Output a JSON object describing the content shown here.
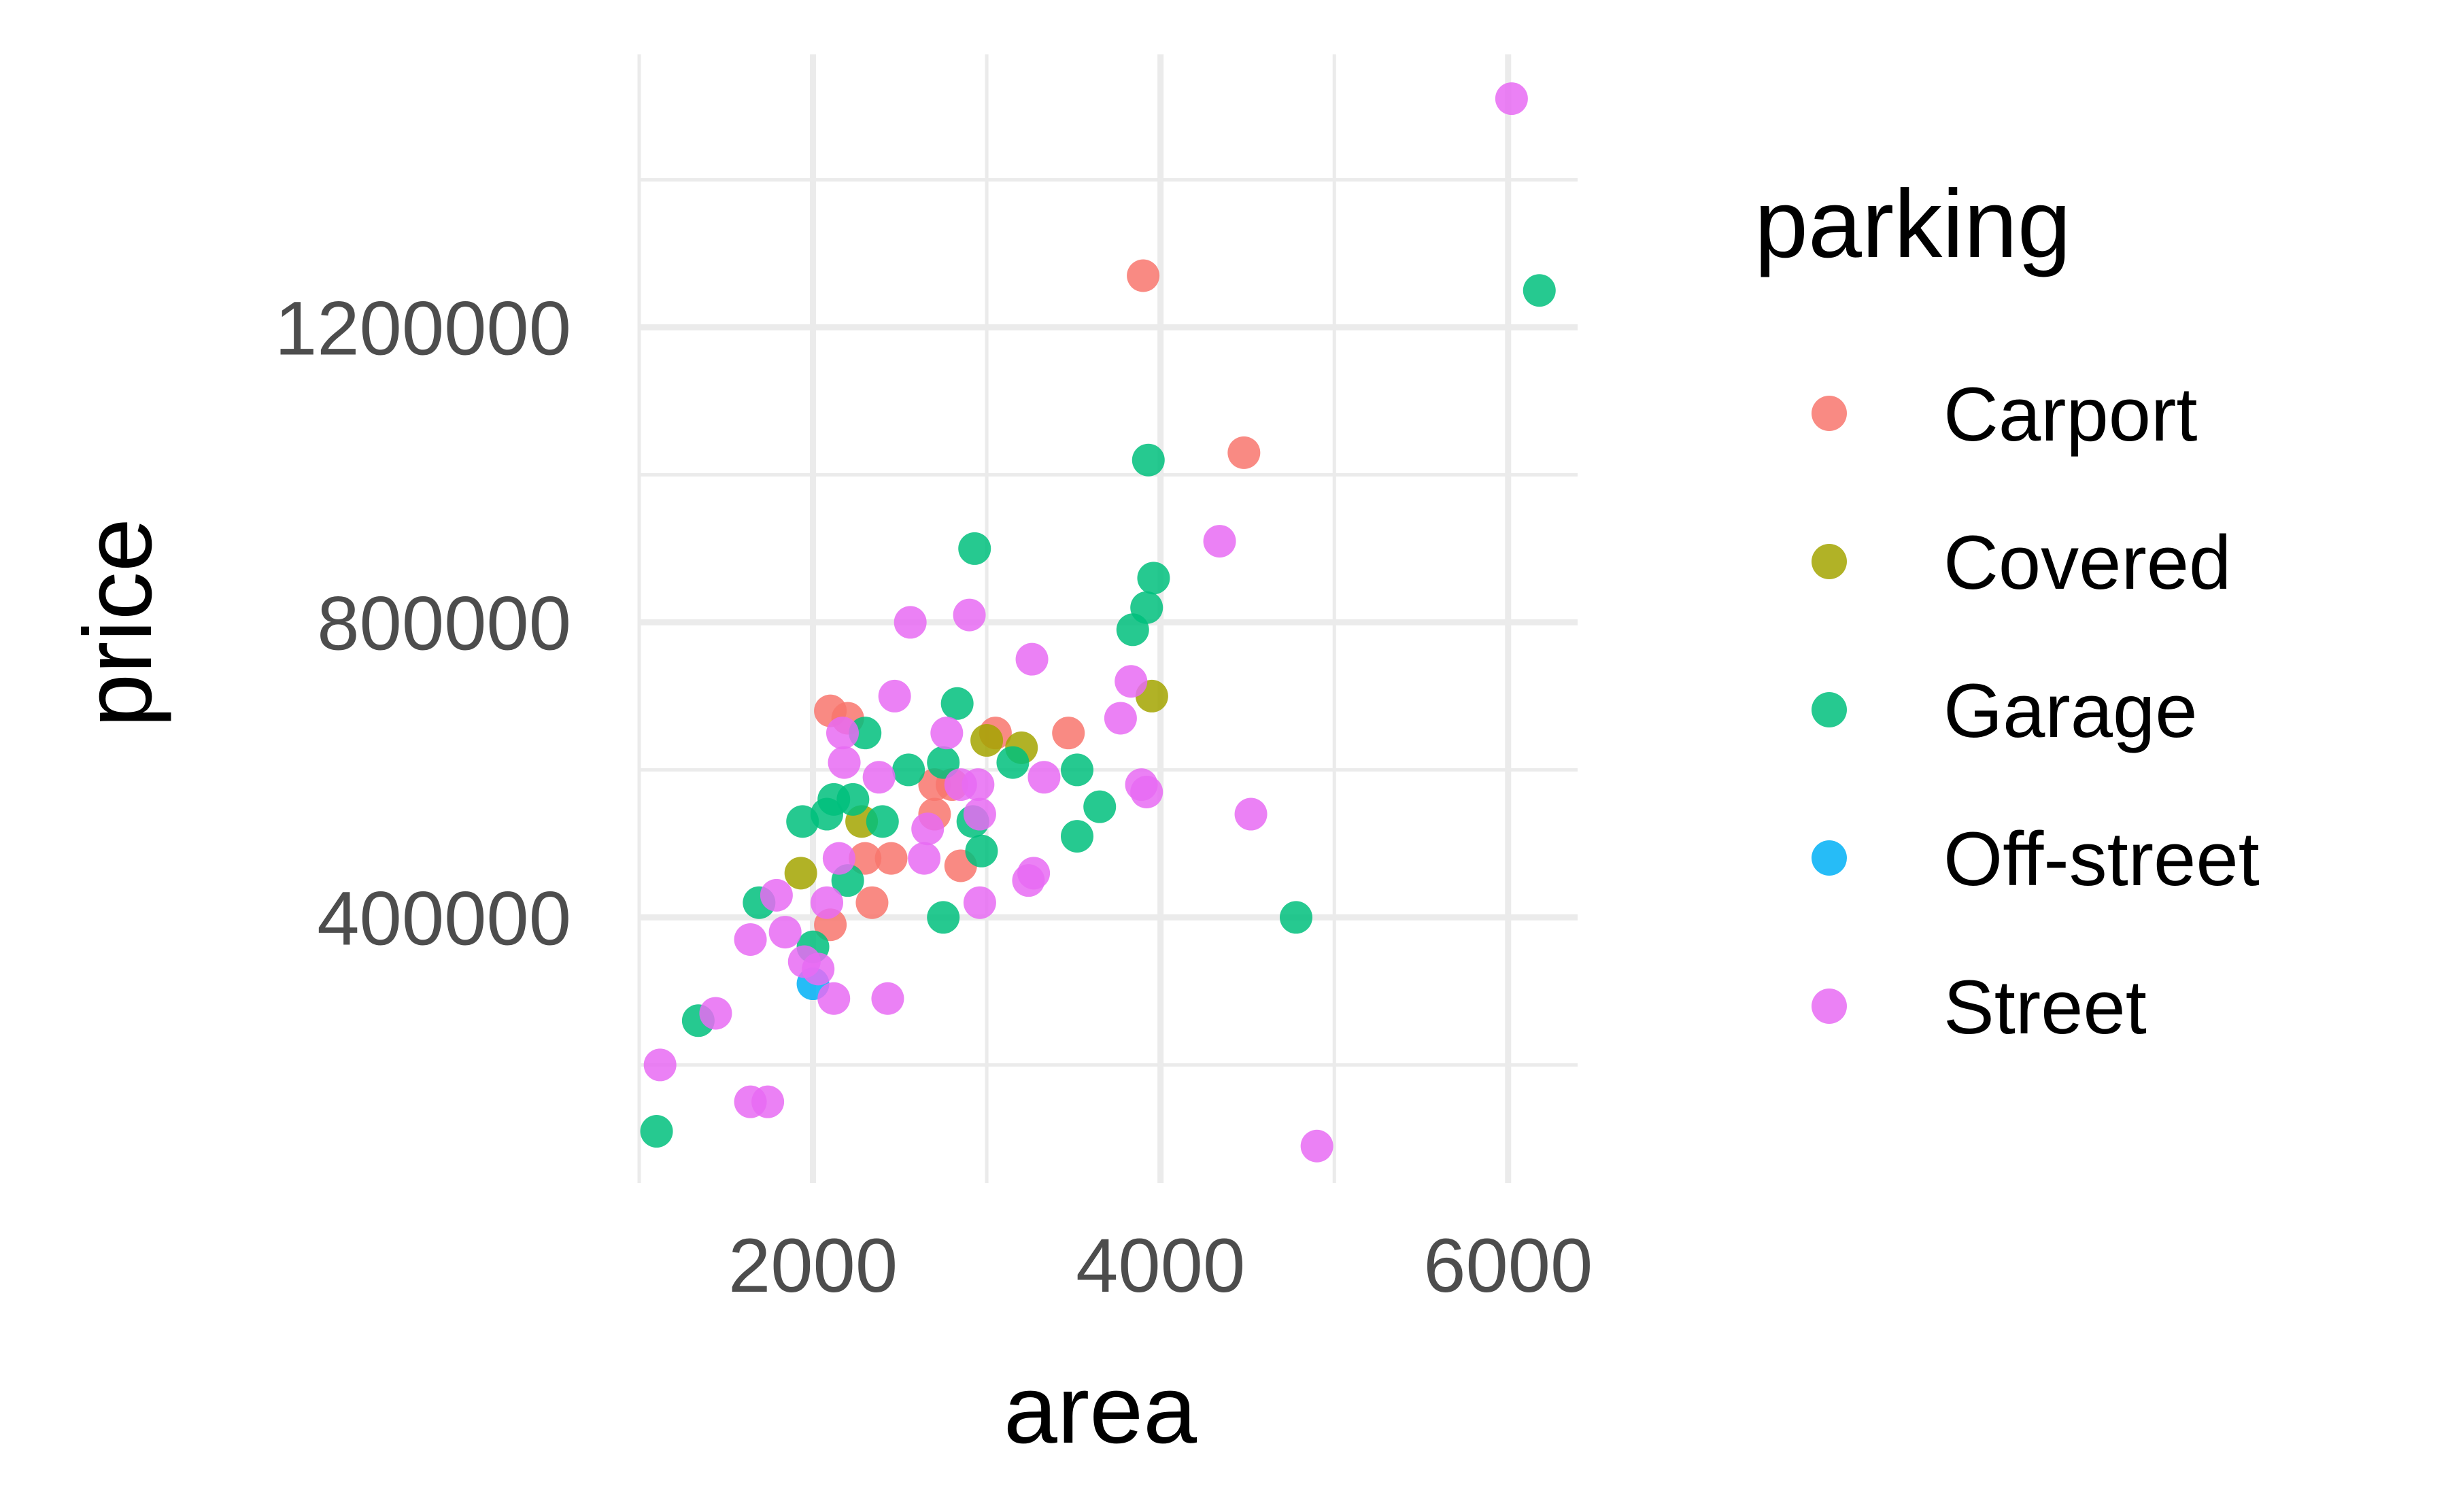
{
  "chart_data": {
    "type": "scatter",
    "xlabel": "area",
    "ylabel": "price",
    "xlim": [
      1000,
      6400
    ],
    "ylim": [
      40000,
      1570000
    ],
    "x_ticks": [
      2000,
      4000,
      6000
    ],
    "x_tick_labels": [
      "2000",
      "4000",
      "6000"
    ],
    "y_ticks": [
      400000,
      800000,
      1200000
    ],
    "y_tick_labels": [
      "400000",
      "800000",
      "1200000"
    ],
    "grid": true,
    "legend": {
      "title": "parking",
      "position": "right",
      "items": [
        "Carport",
        "Covered",
        "Garage",
        "Off-street",
        "Street"
      ]
    },
    "series": [
      {
        "name": "Carport",
        "color": "#F8766D",
        "points": [
          [
            3900,
            1270000
          ],
          [
            4480,
            1030000
          ],
          [
            2100,
            680000
          ],
          [
            2200,
            670000
          ],
          [
            3050,
            650000
          ],
          [
            3470,
            650000
          ],
          [
            2700,
            580000
          ],
          [
            2800,
            580000
          ],
          [
            2700,
            540000
          ],
          [
            2850,
            470000
          ],
          [
            2300,
            480000
          ],
          [
            2450,
            480000
          ],
          [
            2100,
            390000
          ],
          [
            2340,
            420000
          ]
        ]
      },
      {
        "name": "Covered",
        "color": "#A3A500",
        "points": [
          [
            3950,
            700000
          ],
          [
            3000,
            640000
          ],
          [
            3200,
            630000
          ],
          [
            2280,
            530000
          ],
          [
            1930,
            460000
          ]
        ]
      },
      {
        "name": "Garage",
        "color": "#00BF7D",
        "points": [
          [
            6180,
            1250000
          ],
          [
            3930,
            1020000
          ],
          [
            2930,
            900000
          ],
          [
            3960,
            860000
          ],
          [
            3920,
            820000
          ],
          [
            3840,
            790000
          ],
          [
            2830,
            690000
          ],
          [
            2300,
            650000
          ],
          [
            2750,
            610000
          ],
          [
            3150,
            610000
          ],
          [
            3520,
            600000
          ],
          [
            2550,
            600000
          ],
          [
            2230,
            560000
          ],
          [
            2400,
            530000
          ],
          [
            1940,
            530000
          ],
          [
            2080,
            540000
          ],
          [
            2120,
            560000
          ],
          [
            2920,
            530000
          ],
          [
            2970,
            490000
          ],
          [
            3520,
            510000
          ],
          [
            3650,
            550000
          ],
          [
            2200,
            450000
          ],
          [
            4780,
            400000
          ],
          [
            2750,
            400000
          ],
          [
            1690,
            420000
          ],
          [
            2000,
            360000
          ],
          [
            1340,
            260000
          ],
          [
            1100,
            110000
          ]
        ]
      },
      {
        "name": "Off-street",
        "color": "#00B0F6",
        "points": [
          [
            2000,
            310000
          ]
        ]
      },
      {
        "name": "Street",
        "color": "#E76BF3",
        "points": [
          [
            6020,
            1510000
          ],
          [
            4340,
            910000
          ],
          [
            2900,
            810000
          ],
          [
            2560,
            800000
          ],
          [
            3260,
            750000
          ],
          [
            3830,
            720000
          ],
          [
            2470,
            700000
          ],
          [
            3770,
            670000
          ],
          [
            2770,
            650000
          ],
          [
            2170,
            650000
          ],
          [
            2180,
            610000
          ],
          [
            2380,
            590000
          ],
          [
            2850,
            580000
          ],
          [
            2950,
            580000
          ],
          [
            3890,
            580000
          ],
          [
            3920,
            570000
          ],
          [
            4520,
            540000
          ],
          [
            3330,
            590000
          ],
          [
            2960,
            540000
          ],
          [
            2660,
            520000
          ],
          [
            2640,
            480000
          ],
          [
            2150,
            480000
          ],
          [
            3270,
            460000
          ],
          [
            3240,
            450000
          ],
          [
            2960,
            420000
          ],
          [
            2080,
            420000
          ],
          [
            1790,
            430000
          ],
          [
            1840,
            380000
          ],
          [
            1640,
            370000
          ],
          [
            1950,
            340000
          ],
          [
            2030,
            330000
          ],
          [
            2120,
            290000
          ],
          [
            2430,
            290000
          ],
          [
            1440,
            270000
          ],
          [
            1120,
            200000
          ],
          [
            1640,
            150000
          ],
          [
            1740,
            150000
          ],
          [
            4900,
            90000
          ]
        ]
      }
    ]
  }
}
